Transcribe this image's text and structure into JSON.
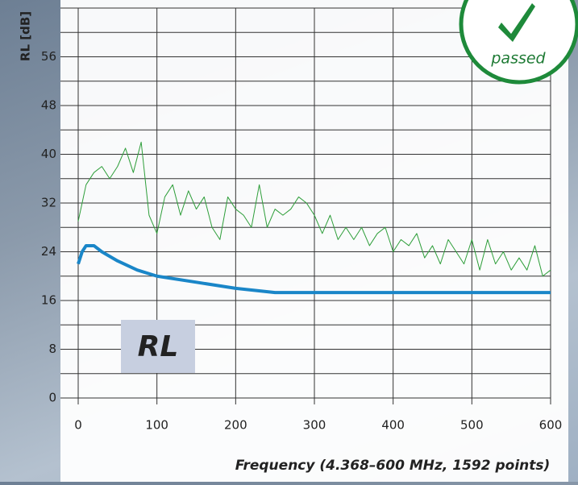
{
  "chart_data": {
    "type": "line",
    "ylabel": "RL [dB]",
    "xlabel": "Frequency (4.368–600 MHz, 1592 points)",
    "annotations": [
      "RL",
      "passed"
    ],
    "xlim": [
      0,
      600
    ],
    "xticks": [
      0,
      100,
      200,
      300,
      400,
      500,
      600
    ],
    "ylim": [
      0,
      64
    ],
    "yticks": [
      0,
      8,
      16,
      24,
      32,
      40,
      48,
      56
    ],
    "yminor": [
      4,
      12,
      20,
      28,
      36,
      44,
      52,
      60,
      64
    ],
    "grid": true,
    "series": [
      {
        "color": "#2e9e3a",
        "width": 1,
        "x": [
          0,
          10,
          20,
          30,
          40,
          50,
          60,
          70,
          80,
          90,
          100,
          110,
          120,
          130,
          140,
          150,
          160,
          170,
          180,
          190,
          200,
          210,
          220,
          230,
          240,
          250,
          260,
          270,
          280,
          290,
          300,
          310,
          320,
          330,
          340,
          350,
          360,
          370,
          380,
          390,
          400,
          410,
          420,
          430,
          440,
          450,
          460,
          470,
          480,
          490,
          500,
          510,
          520,
          530,
          540,
          550,
          560,
          570,
          580,
          590,
          600
        ],
        "values": [
          29,
          35,
          37,
          38,
          36,
          38,
          41,
          37,
          42,
          30,
          27,
          33,
          35,
          30,
          34,
          31,
          33,
          28,
          26,
          33,
          31,
          30,
          28,
          35,
          28,
          31,
          30,
          31,
          33,
          32,
          30,
          27,
          30,
          26,
          28,
          26,
          28,
          25,
          27,
          28,
          24,
          26,
          25,
          27,
          23,
          25,
          22,
          26,
          24,
          22,
          26,
          21,
          26,
          22,
          24,
          21,
          23,
          21,
          25,
          20,
          21
        ]
      },
      {
        "color": "#1a86c8",
        "width": 4,
        "x": [
          0,
          5,
          10,
          20,
          30,
          50,
          75,
          100,
          150,
          200,
          250,
          600
        ],
        "values": [
          22,
          24,
          25,
          25,
          24,
          22.5,
          21,
          20,
          19,
          18,
          17.3,
          17.3
        ]
      }
    ]
  }
}
